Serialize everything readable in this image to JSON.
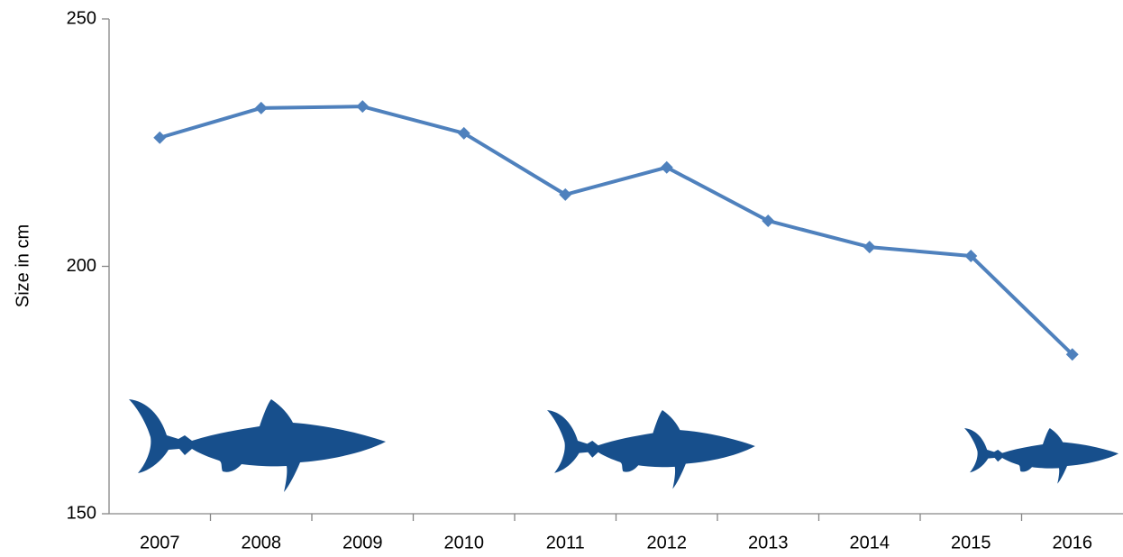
{
  "chart_data": {
    "type": "line",
    "y_label": "Size in cm",
    "categories": [
      "2007",
      "2008",
      "2009",
      "2010",
      "2011",
      "2012",
      "2013",
      "2014",
      "2015",
      "2016"
    ],
    "series": [
      {
        "name": "Size",
        "color": "#4f81bd",
        "values": [
          226.0,
          232.0,
          232.3,
          226.9,
          214.5,
          220.0,
          209.2,
          203.9,
          202.1,
          182.2
        ]
      }
    ],
    "ylim": [
      150,
      250
    ],
    "yticks": [
      150,
      200,
      250
    ],
    "grid": false
  }
}
